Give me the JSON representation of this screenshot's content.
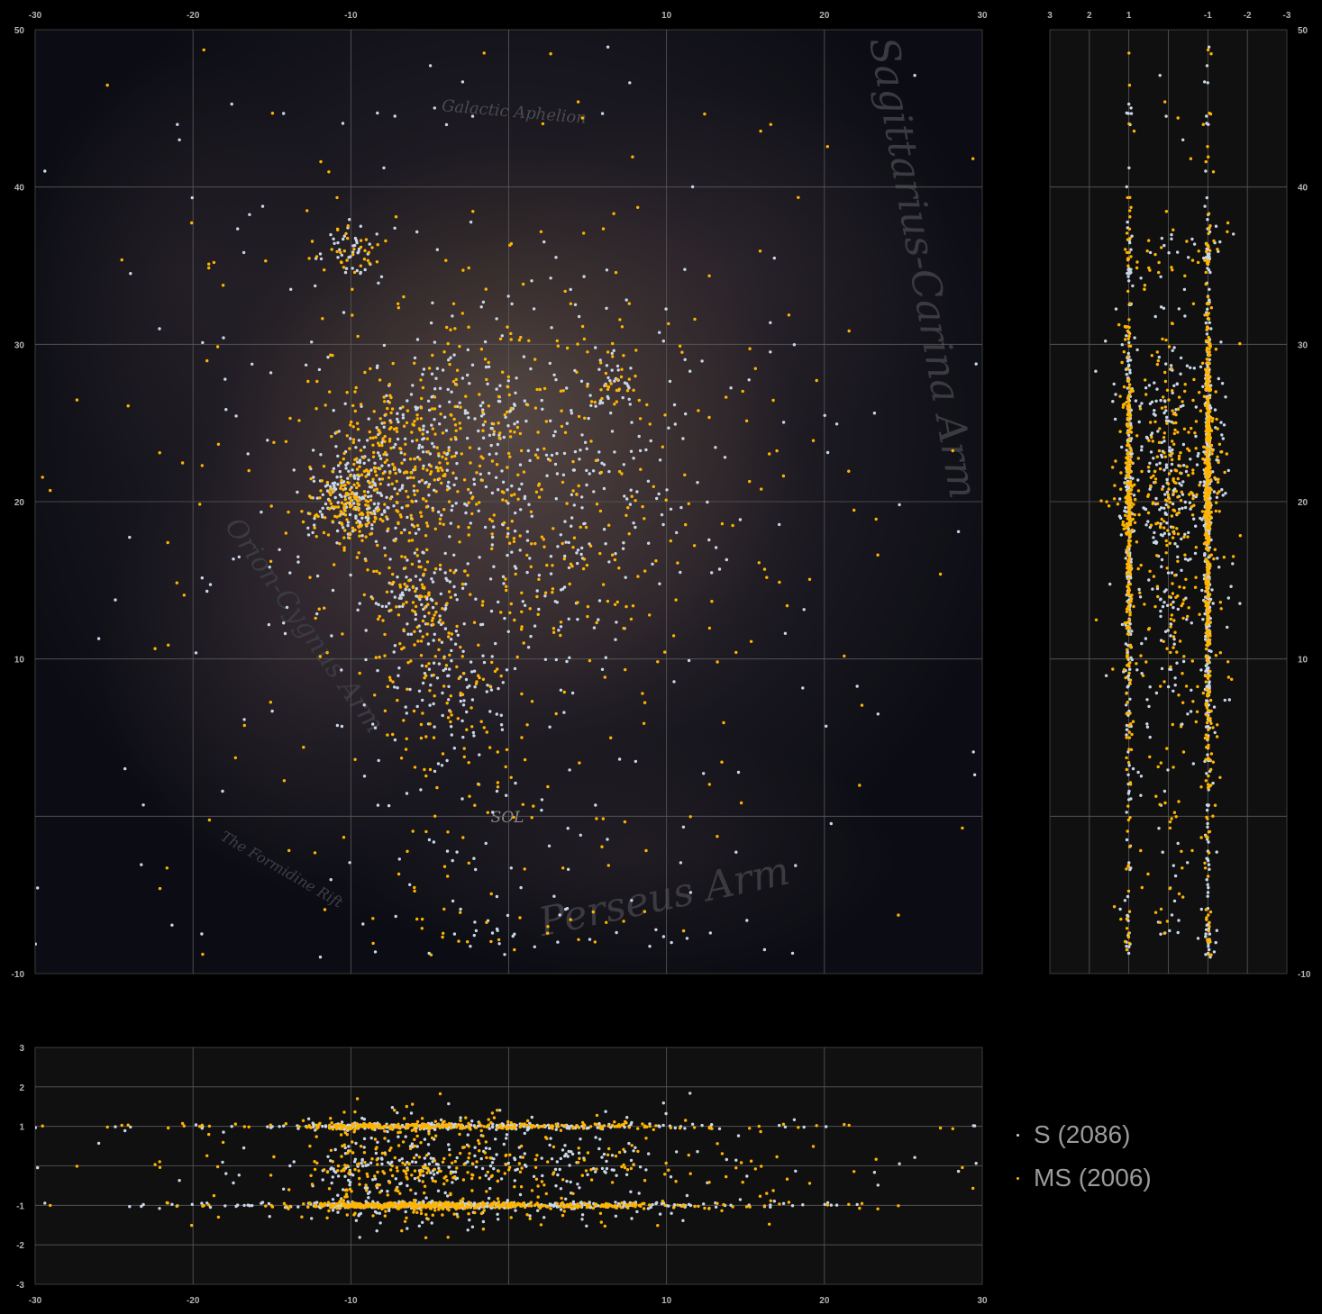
{
  "chart_data": [
    {
      "type": "scatter",
      "view": "top (X vs Z)",
      "xlim": [
        -30,
        30
      ],
      "ylim": [
        -10,
        50
      ],
      "x_ticks": [
        -30,
        -20,
        -10,
        10,
        20,
        30
      ],
      "y_ticks": [
        -10,
        10,
        20,
        30,
        40,
        50
      ],
      "grid": true,
      "background_labels": [
        "Sagittarius-Carina Arm",
        "Orion-Cygnus Arm",
        "Perseus Arm",
        "Galactic Aphelion",
        "The Formidine Rift",
        "SOL"
      ],
      "clusters": [
        {
          "x": -10.0,
          "y": 20.0,
          "spread": 1.2,
          "share": 0.12
        },
        {
          "x": -7.5,
          "y": 22.5,
          "spread": 2.0,
          "share": 0.1
        },
        {
          "x": -6.0,
          "y": 14.0,
          "spread": 1.5,
          "share": 0.06
        },
        {
          "x": -4.5,
          "y": 8.0,
          "spread": 2.5,
          "share": 0.07
        },
        {
          "x": -3.0,
          "y": 24.0,
          "spread": 3.5,
          "share": 0.08
        },
        {
          "x": -10.0,
          "y": 36.0,
          "spread": 1.0,
          "share": 0.03
        },
        {
          "x": 0.0,
          "y": 20.0,
          "spread": 7.0,
          "share": 0.3
        },
        {
          "x": 6.5,
          "y": 27.5,
          "spread": 0.8,
          "share": 0.02
        },
        {
          "x": -1.0,
          "y": -4.0,
          "spread": 5.0,
          "share": 0.05
        },
        {
          "x": 0.0,
          "y": 20.0,
          "spread": 16.0,
          "share": 0.17
        }
      ]
    },
    {
      "type": "scatter",
      "view": "side (Y vs Z)",
      "xlim": [
        3,
        -3
      ],
      "ylim": [
        -10,
        50
      ],
      "x_ticks": [
        3,
        2,
        1,
        -1,
        -2,
        -3
      ],
      "y_ticks": [
        -10,
        10,
        20,
        30,
        40,
        50
      ],
      "grid": true,
      "bands": [
        1,
        0,
        -1
      ]
    },
    {
      "type": "scatter",
      "view": "front (X vs Y)",
      "xlim": [
        -30,
        30
      ],
      "ylim": [
        -3,
        3
      ],
      "x_ticks": [
        -30,
        -20,
        -10,
        10,
        20,
        30
      ],
      "y_ticks": [
        3,
        2,
        1,
        -1,
        -2,
        -3
      ],
      "grid": true,
      "bands": [
        1,
        0,
        -1
      ]
    }
  ],
  "series": [
    {
      "name": "S (2086)",
      "count": 2086,
      "color": "#c8d6e8"
    },
    {
      "name": "MS (2006)",
      "count": 2006,
      "color": "#ffb400"
    }
  ],
  "legend": {
    "placement": "bottom-right",
    "entries": [
      "S (2086)",
      "MS (2006)"
    ]
  },
  "background_watermarks": [
    "Sagittarius-Carina Arm",
    "Orion-Cygnus Arm",
    "Perseus Arm",
    "Galactic Aphelion",
    "The Formidine Rift",
    "SOL"
  ]
}
